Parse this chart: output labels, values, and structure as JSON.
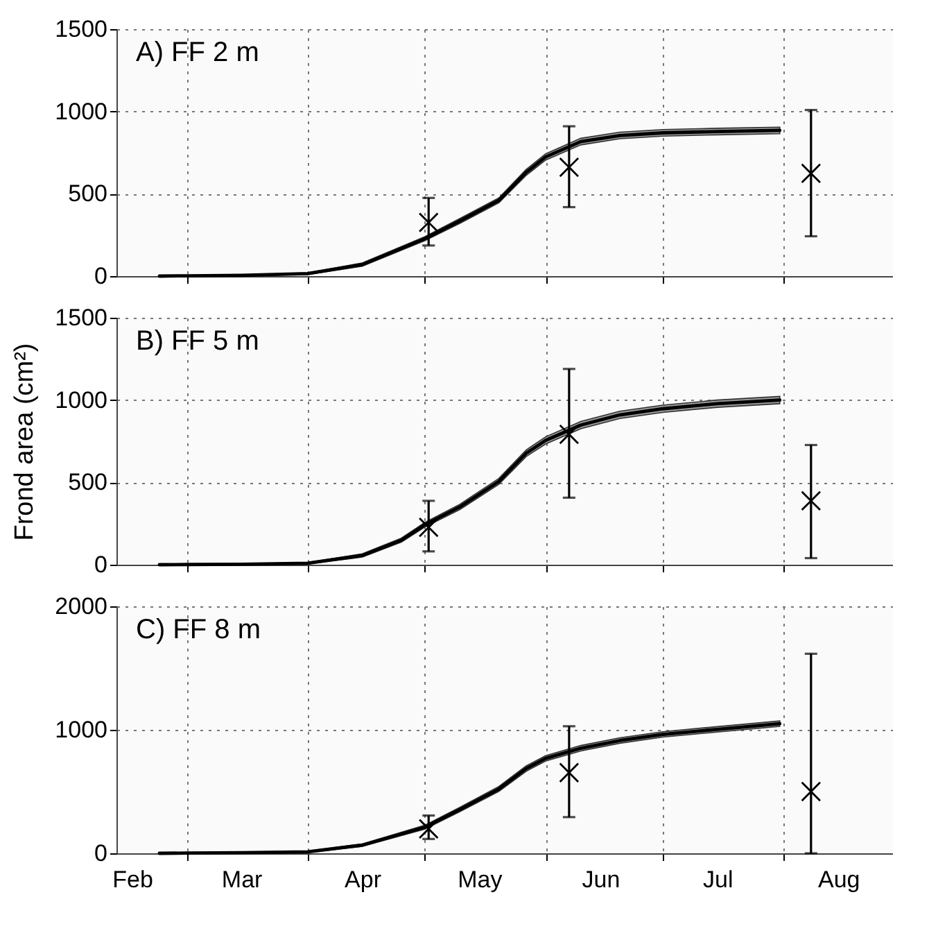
{
  "chart_data": [
    {
      "type": "line",
      "title": "A)  FF 2 m",
      "xlim": [
        "--02-11",
        "--08-29"
      ],
      "ylim": [
        0,
        1500
      ],
      "yticks": [
        0,
        500,
        1000,
        1500
      ],
      "xticks": [
        {
          "value": "--03-01",
          "label": null
        },
        {
          "value": "--04-01",
          "label": null
        },
        {
          "value": "--05-01",
          "label": null
        },
        {
          "value": "--06-01",
          "label": null
        },
        {
          "value": "--07-01",
          "label": null
        },
        {
          "value": "--08-01",
          "label": null
        }
      ],
      "grid": true,
      "tick_labels": "y",
      "series": [
        {
          "type": "line",
          "color": "#000000",
          "x": [
            "--02-22",
            "--03-01",
            "--03-15",
            "--04-01",
            "--04-15",
            "--05-01",
            "--05-10",
            "--05-20",
            "--05-27",
            "--06-01",
            "--06-10",
            "--06-20",
            "--07-01",
            "--07-15",
            "--07-31"
          ],
          "values": [
            0,
            2,
            5,
            15,
            70,
            227,
            335,
            460,
            630,
            724,
            817,
            854,
            870,
            878,
            885
          ],
          "lower": [
            0,
            1,
            3,
            10,
            60,
            215,
            320,
            445,
            612,
            705,
            797,
            834,
            850,
            858,
            865
          ],
          "upper": [
            0,
            3,
            7,
            20,
            80,
            239,
            350,
            475,
            648,
            743,
            837,
            874,
            890,
            898,
            905
          ]
        },
        {
          "type": "scatter",
          "color": "#000000",
          "marker": "cross",
          "x": [
            "--05-02",
            "--06-07",
            "--08-08"
          ],
          "values": [
            326,
            661,
            624
          ],
          "errors": [
            [
              186,
              475
            ],
            [
              419,
              910
            ],
            [
              242,
              1009
            ]
          ]
        }
      ]
    },
    {
      "type": "line",
      "title": "B)  FF 5 m",
      "ylabel": "Frond area (cm²)",
      "xlim": [
        "--02-11",
        "--08-29"
      ],
      "ylim": [
        0,
        1500
      ],
      "yticks": [
        0,
        500,
        1000,
        1500
      ],
      "xticks": [
        {
          "value": "--03-01",
          "label": null
        },
        {
          "value": "--04-01",
          "label": null
        },
        {
          "value": "--05-01",
          "label": null
        },
        {
          "value": "--06-01",
          "label": null
        },
        {
          "value": "--07-01",
          "label": null
        },
        {
          "value": "--08-01",
          "label": null
        }
      ],
      "grid": true,
      "tick_labels": "y",
      "series": [
        {
          "type": "line",
          "color": "#000000",
          "x": [
            "--02-22",
            "--03-01",
            "--03-15",
            "--04-01",
            "--04-15",
            "--04-25",
            "--05-01",
            "--05-10",
            "--05-20",
            "--05-27",
            "--06-01",
            "--06-10",
            "--06-20",
            "--07-01",
            "--07-15",
            "--07-31"
          ],
          "values": [
            0,
            1,
            3,
            9,
            56,
            149,
            242,
            351,
            506,
            677,
            755,
            848,
            910,
            947,
            978,
            1000
          ],
          "lower": [
            0,
            0,
            1,
            5,
            46,
            137,
            228,
            335,
            488,
            657,
            733,
            826,
            888,
            925,
            956,
            978
          ],
          "upper": [
            0,
            2,
            5,
            13,
            66,
            161,
            256,
            367,
            524,
            697,
            777,
            870,
            932,
            969,
            1000,
            1022
          ]
        },
        {
          "type": "scatter",
          "color": "#000000",
          "marker": "cross",
          "x": [
            "--05-02",
            "--06-07",
            "--08-08"
          ],
          "values": [
            227,
            792,
            388
          ],
          "errors": [
            [
              81,
              388
            ],
            [
              407,
              1189
            ],
            [
              40,
              727
            ]
          ]
        }
      ]
    },
    {
      "type": "line",
      "title": "C)  FF 8 m",
      "xlim": [
        "--02-11",
        "--08-29"
      ],
      "ylim": [
        0,
        2000
      ],
      "yticks": [
        0,
        1000,
        2000
      ],
      "xticks": [
        {
          "value": "--02-15",
          "label": "Feb"
        },
        {
          "value": "--03-01",
          "label": null
        },
        {
          "value": "--03-15",
          "label": "Mar"
        },
        {
          "value": "--04-01",
          "label": null
        },
        {
          "value": "--04-15",
          "label": "Apr"
        },
        {
          "value": "--05-01",
          "label": null
        },
        {
          "value": "--05-15",
          "label": "May"
        },
        {
          "value": "--06-01",
          "label": null
        },
        {
          "value": "--06-15",
          "label": "Jun"
        },
        {
          "value": "--07-01",
          "label": null
        },
        {
          "value": "--07-15",
          "label": "Jul"
        },
        {
          "value": "--08-01",
          "label": null
        },
        {
          "value": "--08-15",
          "label": "Aug"
        }
      ],
      "grid": true,
      "series": [
        {
          "type": "line",
          "color": "#000000",
          "x": [
            "--02-22",
            "--03-01",
            "--03-15",
            "--04-01",
            "--04-15",
            "--05-01",
            "--05-10",
            "--05-20",
            "--05-27",
            "--06-01",
            "--06-10",
            "--06-20",
            "--07-01",
            "--07-15",
            "--07-31"
          ],
          "values": [
            0,
            2,
            5,
            12,
            66,
            211,
            355,
            521,
            686,
            769,
            851,
            913,
            963,
            1004,
            1050
          ],
          "lower": [
            0,
            1,
            2,
            6,
            56,
            195,
            337,
            501,
            664,
            747,
            829,
            891,
            941,
            982,
            1028
          ],
          "upper": [
            0,
            3,
            8,
            18,
            76,
            227,
            373,
            541,
            708,
            791,
            873,
            935,
            985,
            1026,
            1072
          ]
        },
        {
          "type": "scatter",
          "color": "#000000",
          "marker": "cross",
          "x": [
            "--05-02",
            "--06-07",
            "--08-08"
          ],
          "values": [
            198,
            653,
            500
          ],
          "errors": [
            [
              116,
              306
            ],
            [
              293,
              1029
            ],
            [
              0,
              1616
            ]
          ]
        }
      ]
    }
  ]
}
